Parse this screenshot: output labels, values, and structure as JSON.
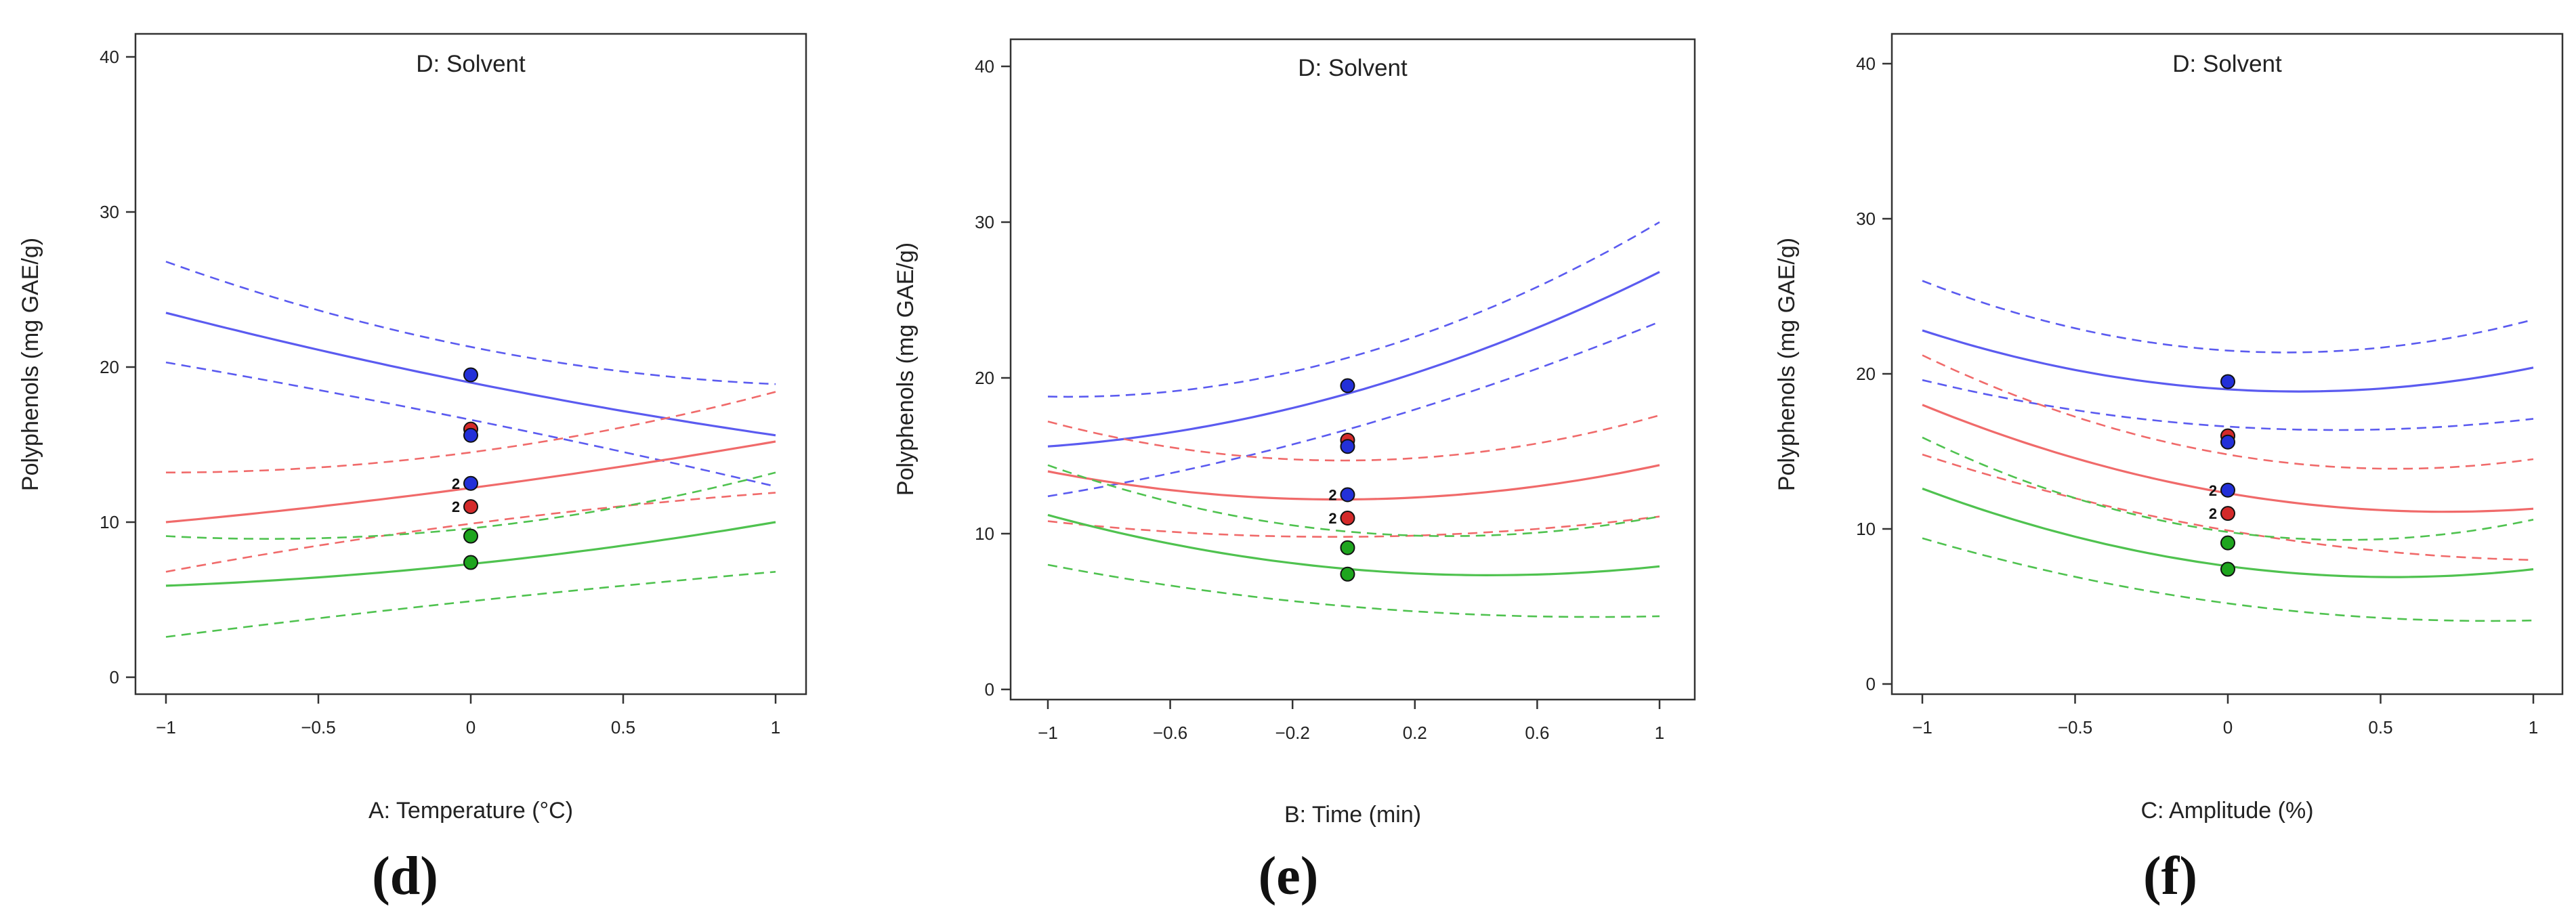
{
  "chart_data": [
    {
      "type": "line",
      "panel_letter": "(d)",
      "title": "D: Solvent",
      "xlabel": "A: Temperature (°C)",
      "ylabel": "Polyphenols (mg GAE/g)",
      "xlim": [
        -1,
        1
      ],
      "ylim": [
        0,
        40
      ],
      "x_ticks": [
        -1,
        -0.5,
        0,
        0.5,
        1
      ],
      "x_tick_labels": [
        "−1",
        "−0.5",
        "0",
        "0.5",
        "1"
      ],
      "y_ticks": [
        0,
        10,
        20,
        30,
        40
      ],
      "y_tick_labels": [
        "0",
        "10",
        "20",
        "30",
        "40"
      ],
      "series": [
        {
          "name": "blue",
          "color": "#5b5bf0",
          "x": [
            -1,
            0,
            1
          ],
          "mean": [
            23.5,
            19.0,
            15.6
          ],
          "upper": [
            26.8,
            21.3,
            18.9
          ],
          "lower": [
            20.3,
            16.6,
            12.3
          ]
        },
        {
          "name": "red",
          "color": "#f06a6a",
          "x": [
            -1,
            0,
            1
          ],
          "mean": [
            10.0,
            12.2,
            15.2
          ],
          "upper": [
            13.2,
            14.5,
            18.4
          ],
          "lower": [
            6.8,
            9.9,
            11.9
          ]
        },
        {
          "name": "green",
          "color": "#4fc24f",
          "x": [
            -1,
            0,
            1
          ],
          "mean": [
            5.9,
            7.3,
            10.0
          ],
          "upper": [
            9.1,
            9.6,
            13.2
          ],
          "lower": [
            2.6,
            4.9,
            6.8
          ]
        }
      ],
      "points": [
        {
          "x": 0,
          "y": 19.5,
          "color": "#2330d8"
        },
        {
          "x": 0,
          "y": 16.0,
          "color": "#d42a2a"
        },
        {
          "x": 0,
          "y": 15.6,
          "color": "#2330d8"
        },
        {
          "x": 0,
          "y": 12.5,
          "color": "#2330d8",
          "label": "2"
        },
        {
          "x": 0,
          "y": 11.0,
          "color": "#d42a2a",
          "label": "2"
        },
        {
          "x": 0,
          "y": 9.1,
          "color": "#1ea51e"
        },
        {
          "x": 0,
          "y": 7.4,
          "color": "#1ea51e"
        }
      ]
    },
    {
      "type": "line",
      "panel_letter": "(e)",
      "title": "D: Solvent",
      "xlabel": "B: Time (min)",
      "ylabel": "Polyphenols (mg GAE/g)",
      "xlim": [
        -1,
        1
      ],
      "ylim": [
        0,
        40
      ],
      "x_ticks": [
        -1,
        -0.6,
        -0.2,
        0.2,
        0.6,
        1
      ],
      "x_tick_labels": [
        "−1",
        "−0.6",
        "−0.2",
        "0.2",
        "0.6",
        "1"
      ],
      "y_ticks": [
        0,
        10,
        20,
        30,
        40
      ],
      "y_tick_labels": [
        "0",
        "10",
        "20",
        "30",
        "40"
      ],
      "series": [
        {
          "name": "blue",
          "color": "#5b5bf0",
          "x": [
            -1,
            0,
            1
          ],
          "mean": [
            15.6,
            19.1,
            26.8
          ],
          "upper": [
            18.8,
            21.4,
            30.0
          ],
          "lower": [
            12.4,
            16.8,
            23.6
          ]
        },
        {
          "name": "red",
          "color": "#f06a6a",
          "x": [
            -1,
            0,
            1
          ],
          "mean": [
            14.0,
            12.2,
            14.4
          ],
          "upper": [
            17.2,
            14.7,
            17.6
          ],
          "lower": [
            10.8,
            9.8,
            11.1
          ]
        },
        {
          "name": "green",
          "color": "#4fc24f",
          "x": [
            -1,
            0,
            1
          ],
          "mean": [
            11.2,
            7.7,
            7.9
          ],
          "upper": [
            14.4,
            10.1,
            11.1
          ],
          "lower": [
            8.0,
            5.3,
            4.7
          ]
        }
      ],
      "points": [
        {
          "x": -0.02,
          "y": 19.5,
          "color": "#2330d8"
        },
        {
          "x": -0.02,
          "y": 16.0,
          "color": "#d42a2a"
        },
        {
          "x": -0.02,
          "y": 15.6,
          "color": "#2330d8"
        },
        {
          "x": -0.02,
          "y": 12.5,
          "color": "#2330d8",
          "label": "2"
        },
        {
          "x": -0.02,
          "y": 11.0,
          "color": "#d42a2a",
          "label": "2"
        },
        {
          "x": -0.02,
          "y": 9.1,
          "color": "#1ea51e"
        },
        {
          "x": -0.02,
          "y": 7.4,
          "color": "#1ea51e"
        }
      ]
    },
    {
      "type": "line",
      "panel_letter": "(f)",
      "title": "D: Solvent",
      "xlabel": "C: Amplitude (%)",
      "ylabel": "Polyphenols (mg GAE/g)",
      "xlim": [
        -1,
        1
      ],
      "ylim": [
        0,
        40
      ],
      "x_ticks": [
        -1,
        -0.5,
        0,
        0.5,
        1
      ],
      "x_tick_labels": [
        "−1",
        "−0.5",
        "0",
        "0.5",
        "1"
      ],
      "y_ticks": [
        0,
        10,
        20,
        30,
        40
      ],
      "y_tick_labels": [
        "0",
        "10",
        "20",
        "30",
        "40"
      ],
      "series": [
        {
          "name": "blue",
          "color": "#5b5bf0",
          "x": [
            -1,
            0,
            1
          ],
          "mean": [
            22.8,
            19.0,
            20.4
          ],
          "upper": [
            26.0,
            21.5,
            23.5
          ],
          "lower": [
            19.6,
            16.6,
            17.1
          ]
        },
        {
          "name": "red",
          "color": "#f06a6a",
          "x": [
            -1,
            0,
            1
          ],
          "mean": [
            18.0,
            12.3,
            11.3
          ],
          "upper": [
            21.2,
            14.8,
            14.5
          ],
          "lower": [
            14.8,
            9.9,
            8.0
          ]
        },
        {
          "name": "green",
          "color": "#4fc24f",
          "x": [
            -1,
            0,
            1
          ],
          "mean": [
            12.6,
            7.6,
            7.4
          ],
          "upper": [
            15.9,
            9.8,
            10.6
          ],
          "lower": [
            9.4,
            5.2,
            4.1
          ]
        }
      ],
      "points": [
        {
          "x": 0,
          "y": 19.5,
          "color": "#2330d8"
        },
        {
          "x": 0,
          "y": 16.0,
          "color": "#d42a2a"
        },
        {
          "x": 0,
          "y": 15.6,
          "color": "#2330d8"
        },
        {
          "x": 0,
          "y": 12.5,
          "color": "#2330d8",
          "label": "2"
        },
        {
          "x": 0,
          "y": 11.0,
          "color": "#d42a2a",
          "label": "2"
        },
        {
          "x": 0,
          "y": 9.1,
          "color": "#1ea51e"
        },
        {
          "x": 0,
          "y": 7.4,
          "color": "#1ea51e"
        }
      ]
    }
  ]
}
